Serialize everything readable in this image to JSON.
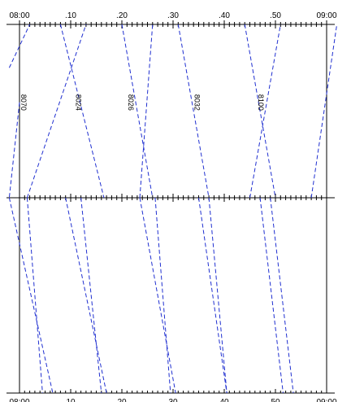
{
  "chart_data": {
    "type": "line",
    "title": "",
    "xlabel": "",
    "ylabel": "",
    "time_range": [
      "08:00",
      "09:00"
    ],
    "xlim_minutes": [
      0,
      60
    ],
    "grid": false,
    "top_ticks": [
      "08:00",
      ".10",
      ".20",
      ".30",
      ".40",
      ".50",
      "09:00"
    ],
    "bottom_ticks": [
      "08:00",
      "10",
      "20",
      "30",
      "40",
      "50",
      "09:00"
    ],
    "station_levels": [
      0,
      1,
      2
    ],
    "labels": [
      {
        "text": "8070",
        "minute": 0.3,
        "level": 1.55
      },
      {
        "text": "8024",
        "minute": 11.0,
        "level": 1.55
      },
      {
        "text": "8026",
        "minute": 21.3,
        "level": 1.55
      },
      {
        "text": "8032",
        "minute": 34.2,
        "level": 1.55
      },
      {
        "text": "8100",
        "minute": 46.7,
        "level": 1.55
      }
    ],
    "series": [
      {
        "points": [
          [
            -2,
            1.0
          ],
          [
            6.5,
            0.0
          ]
        ]
      },
      {
        "points": [
          [
            1.5,
            1.0
          ],
          [
            4.5,
            0.0
          ]
        ]
      },
      {
        "points": [
          [
            9,
            1.0
          ],
          [
            17,
            0.0
          ]
        ]
      },
      {
        "points": [
          [
            12,
            1.0
          ],
          [
            16,
            0.0
          ]
        ]
      },
      {
        "points": [
          [
            23.5,
            1.0
          ],
          [
            30.5,
            0.0
          ]
        ]
      },
      {
        "points": [
          [
            26.5,
            1.0
          ],
          [
            29.5,
            0.0
          ]
        ]
      },
      {
        "points": [
          [
            35,
            1.0
          ],
          [
            40.5,
            0.0
          ]
        ]
      },
      {
        "points": [
          [
            37,
            1.0
          ],
          [
            40.5,
            0.0
          ]
        ]
      },
      {
        "points": [
          [
            47,
            1.0
          ],
          [
            51.5,
            0.0
          ]
        ]
      },
      {
        "points": [
          [
            49,
            1.0
          ],
          [
            53.5,
            0.0
          ]
        ]
      },
      {
        "points": [
          [
            0,
            1.55
          ],
          [
            -2,
            1.0
          ]
        ]
      },
      {
        "points": [
          [
            -2,
            1.75
          ],
          [
            2,
            2.0
          ]
        ]
      },
      {
        "points": [
          [
            1.5,
            1.0
          ],
          [
            13,
            2.0
          ]
        ]
      },
      {
        "points": [
          [
            8,
            2.0
          ],
          [
            16.5,
            1.0
          ]
        ]
      },
      {
        "points": [
          [
            20,
            2.0
          ],
          [
            26,
            1.0
          ]
        ]
      },
      {
        "points": [
          [
            23.5,
            1.0
          ],
          [
            26,
            2.0
          ]
        ]
      },
      {
        "points": [
          [
            31,
            2.0
          ],
          [
            37,
            1.0
          ]
        ]
      },
      {
        "points": [
          [
            44,
            2.0
          ],
          [
            50,
            1.0
          ]
        ]
      },
      {
        "points": [
          [
            45,
            1.0
          ],
          [
            51,
            2.0
          ]
        ]
      },
      {
        "points": [
          [
            57,
            1.0
          ],
          [
            62,
            2.0
          ]
        ]
      }
    ]
  }
}
